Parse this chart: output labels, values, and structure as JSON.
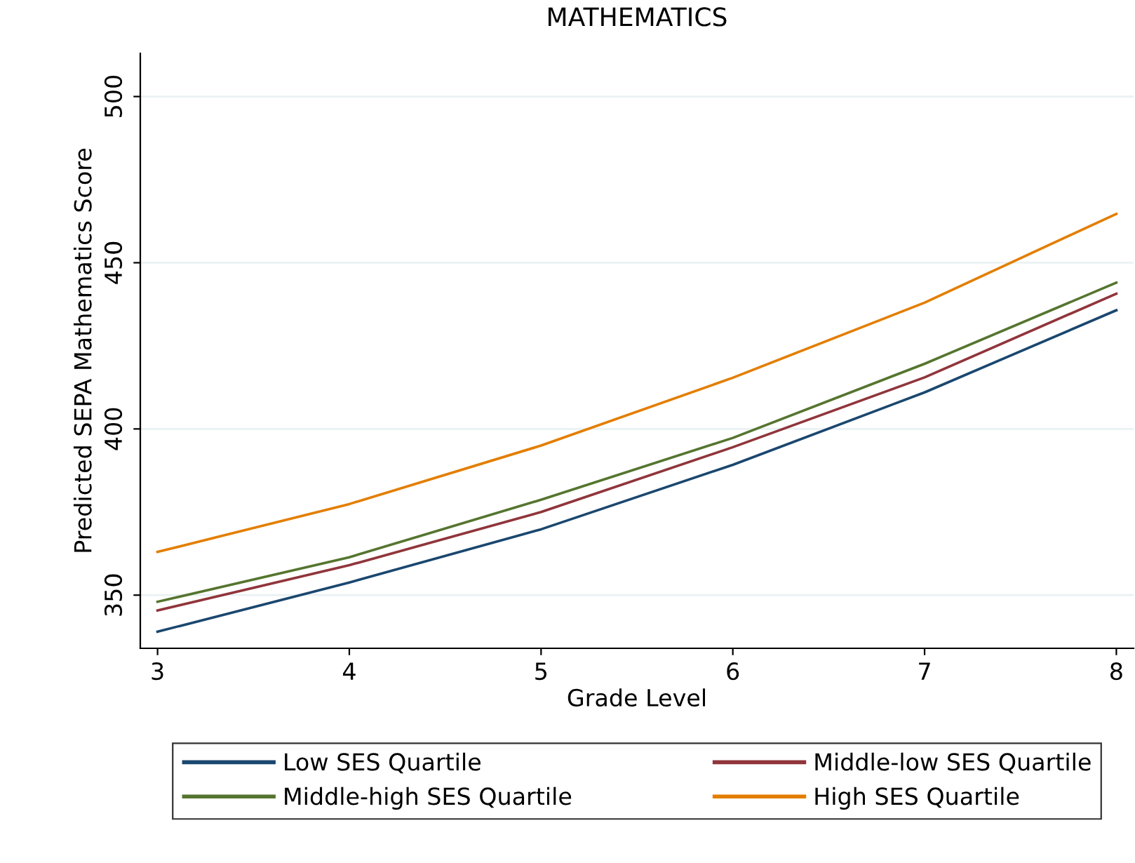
{
  "chart_data": {
    "type": "line",
    "title": "MATHEMATICS",
    "xlabel": "Grade Level",
    "ylabel": "Predicted SEPA Mathematics Score",
    "x": [
      3,
      4,
      5,
      6,
      7,
      8
    ],
    "series": [
      {
        "name": "Low SES Quartile",
        "color": "#1a476f",
        "values": [
          339,
          353.8,
          369.8,
          389.2,
          411,
          435.7
        ]
      },
      {
        "name": "Middle-low SES Quartile",
        "color": "#90353b",
        "values": [
          345.4,
          359,
          375,
          394.5,
          415.5,
          440.7
        ]
      },
      {
        "name": "Middle-high SES Quartile",
        "color": "#55752f",
        "values": [
          348,
          361.4,
          378.7,
          397.3,
          419.6,
          444
        ]
      },
      {
        "name": "High SES Quartile",
        "color": "#e37e00",
        "values": [
          363,
          377.4,
          395,
          415.4,
          438,
          464.7
        ]
      }
    ],
    "xlim": [
      2.91,
      8.09
    ],
    "ylim": [
      334,
      513
    ],
    "xticks": [
      3,
      4,
      5,
      6,
      7,
      8
    ],
    "yticks": [
      350,
      400,
      450,
      500
    ],
    "grid": "y",
    "legend": "bottom",
    "marker": "none",
    "line_style": "solid"
  }
}
